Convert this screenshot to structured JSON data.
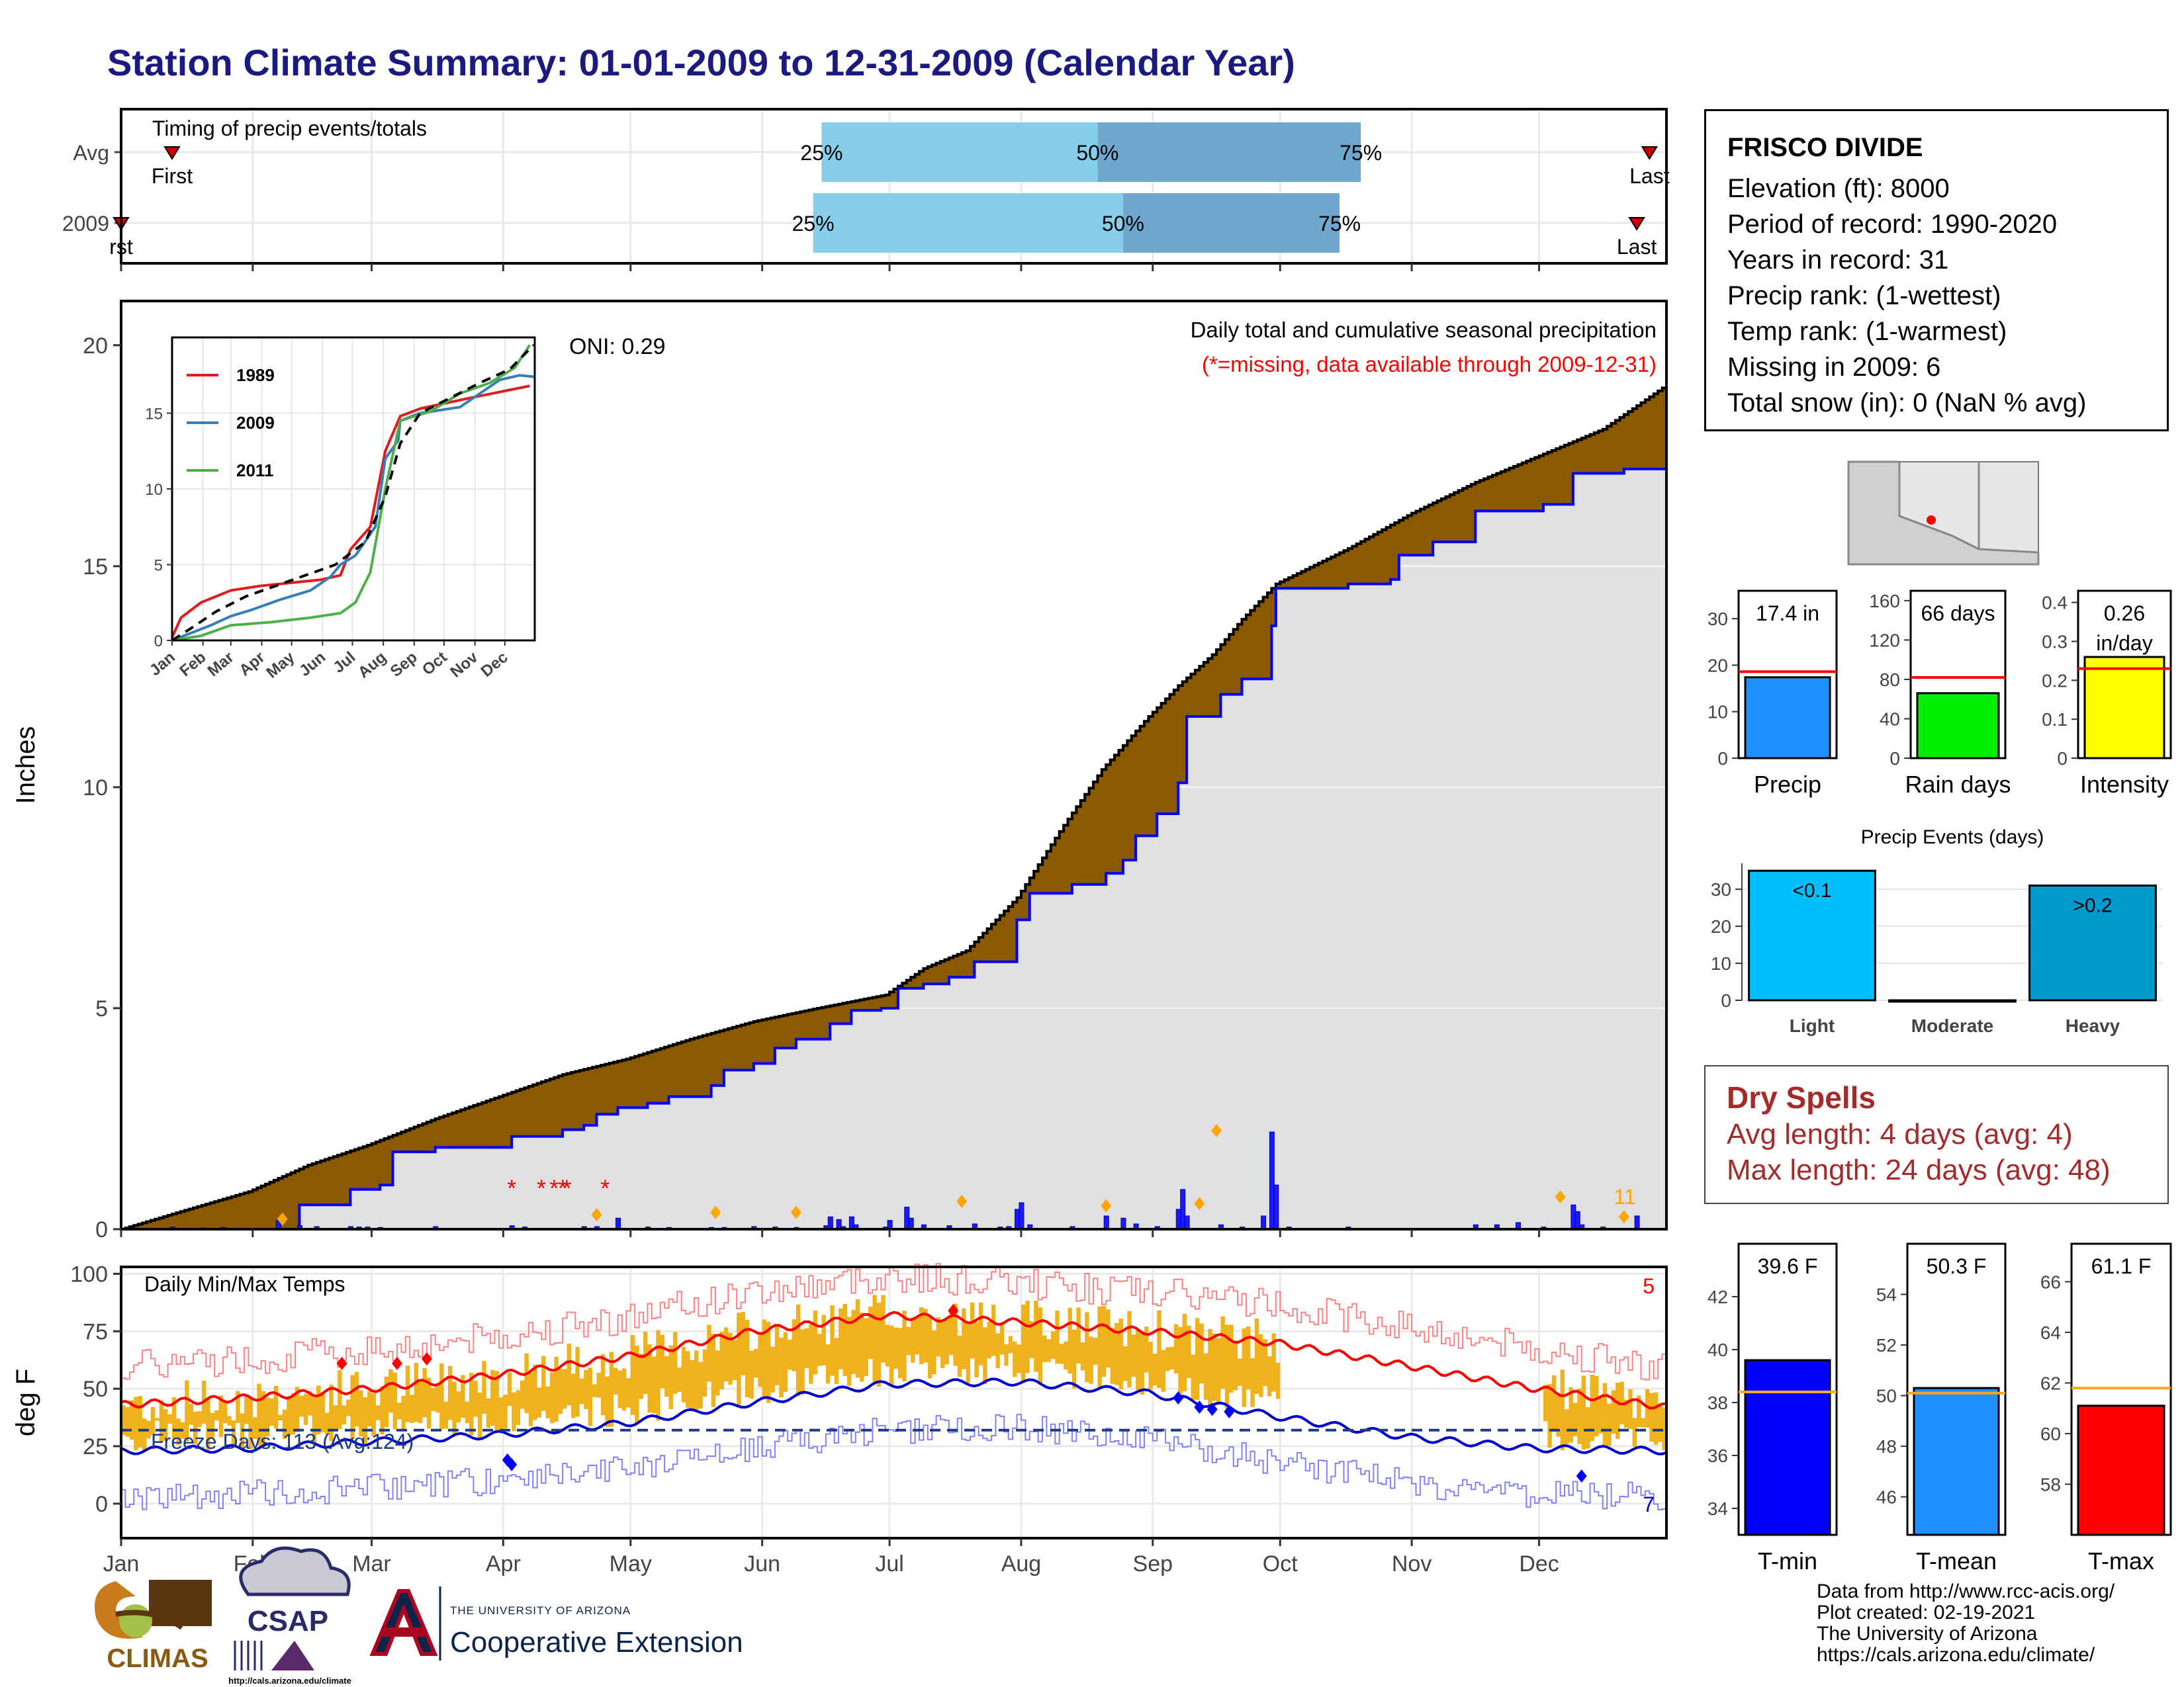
{
  "page": {
    "title": "Station Climate Summary: 01-01-2009 to 12-31-2009 (Calendar Year)"
  },
  "timing": {
    "title": "Timing of precip events/totals",
    "rows": [
      {
        "label": "Avg",
        "first_doy": 13,
        "p25_doy": 166,
        "p50_doy": 231,
        "p75_doy": 293,
        "last_doy": 361,
        "first_label": "First",
        "last_label": "Last",
        "p25_label": "25%",
        "p50_label": "50%",
        "p75_label": "75%"
      },
      {
        "label": "2009",
        "first_doy": 1,
        "p25_doy": 164,
        "p50_doy": 237,
        "p75_doy": 288,
        "last_doy": 358,
        "first_label": "rst",
        "last_label": "Last",
        "p25_label": "25%",
        "p50_label": "50%",
        "p75_label": "75%"
      }
    ],
    "colors": {
      "light": "#87ceeb",
      "dark": "#6fa8cf",
      "marker": "#cc0000"
    }
  },
  "info": {
    "station": "FRISCO DIVIDE",
    "lines": [
      "Elevation (ft): 8000",
      "Period of record: 1990-2020",
      "Years in record: 31",
      "Precip rank:  (1-wettest)",
      "Temp rank:  (1-warmest)",
      "Missing in 2009: 6",
      "Total snow (in): 0 (NaN % avg)"
    ]
  },
  "precip_chart": {
    "ylabel": "Inches",
    "yticks": [
      0,
      5,
      10,
      15,
      20
    ],
    "ylim": [
      0,
      21
    ],
    "note1": "Daily total and cumulative seasonal precipitation",
    "note2": "(*=missing, data available through 2009-12-31)",
    "oni": "ONI: 0.29",
    "count_label": "11",
    "avg_cumulative": [
      [
        1,
        0.0
      ],
      [
        15,
        0.4
      ],
      [
        31,
        0.85
      ],
      [
        45,
        1.45
      ],
      [
        59,
        1.9
      ],
      [
        75,
        2.5
      ],
      [
        90,
        3.0
      ],
      [
        105,
        3.5
      ],
      [
        120,
        3.85
      ],
      [
        135,
        4.3
      ],
      [
        150,
        4.7
      ],
      [
        165,
        5.0
      ],
      [
        181,
        5.3
      ],
      [
        190,
        5.9
      ],
      [
        200,
        6.3
      ],
      [
        212,
        7.5
      ],
      [
        222,
        9.0
      ],
      [
        232,
        10.4
      ],
      [
        243,
        11.6
      ],
      [
        250,
        12.3
      ],
      [
        258,
        13.0
      ],
      [
        265,
        13.8
      ],
      [
        273,
        14.6
      ],
      [
        290,
        15.4
      ],
      [
        305,
        16.2
      ],
      [
        320,
        16.9
      ],
      [
        335,
        17.5
      ],
      [
        350,
        18.1
      ],
      [
        365,
        19.1
      ]
    ],
    "obs_cumulative": [
      [
        1,
        0.0
      ],
      [
        38,
        0.0
      ],
      [
        43,
        0.55
      ],
      [
        55,
        0.9
      ],
      [
        62,
        1.0
      ],
      [
        65,
        1.75
      ],
      [
        75,
        1.85
      ],
      [
        80,
        1.85
      ],
      [
        93,
        2.1
      ],
      [
        105,
        2.25
      ],
      [
        110,
        2.35
      ],
      [
        113,
        2.6
      ],
      [
        118,
        2.75
      ],
      [
        125,
        2.85
      ],
      [
        130,
        3.0
      ],
      [
        140,
        3.25
      ],
      [
        143,
        3.6
      ],
      [
        150,
        3.75
      ],
      [
        155,
        4.1
      ],
      [
        160,
        4.3
      ],
      [
        168,
        4.65
      ],
      [
        173,
        4.95
      ],
      [
        180,
        5.0
      ],
      [
        184,
        5.45
      ],
      [
        190,
        5.55
      ],
      [
        196,
        5.7
      ],
      [
        202,
        6.05
      ],
      [
        212,
        7.0
      ],
      [
        215,
        7.6
      ],
      [
        225,
        7.8
      ],
      [
        233,
        8.05
      ],
      [
        237,
        8.35
      ],
      [
        240,
        8.9
      ],
      [
        245,
        9.4
      ],
      [
        250,
        10.1
      ],
      [
        252,
        11.6
      ],
      [
        260,
        12.1
      ],
      [
        265,
        12.45
      ],
      [
        272,
        13.65
      ],
      [
        273,
        14.5
      ],
      [
        290,
        14.6
      ],
      [
        300,
        14.7
      ],
      [
        302,
        15.25
      ],
      [
        310,
        15.55
      ],
      [
        320,
        16.25
      ],
      [
        336,
        16.4
      ],
      [
        343,
        17.1
      ],
      [
        355,
        17.2
      ],
      [
        365,
        17.4
      ]
    ],
    "daily_bars": [
      [
        13,
        0.05
      ],
      [
        20,
        0.03
      ],
      [
        25,
        0.04
      ],
      [
        38,
        0.2
      ],
      [
        43,
        0.08
      ],
      [
        47,
        0.06
      ],
      [
        55,
        0.06
      ],
      [
        57,
        0.05
      ],
      [
        59,
        0.05
      ],
      [
        62,
        0.04
      ],
      [
        75,
        0.06
      ],
      [
        93,
        0.08
      ],
      [
        96,
        0.05
      ],
      [
        110,
        0.06
      ],
      [
        113,
        0.06
      ],
      [
        118,
        0.25
      ],
      [
        125,
        0.05
      ],
      [
        130,
        0.04
      ],
      [
        140,
        0.04
      ],
      [
        143,
        0.04
      ],
      [
        150,
        0.06
      ],
      [
        155,
        0.05
      ],
      [
        160,
        0.04
      ],
      [
        167,
        0.08
      ],
      [
        168,
        0.28
      ],
      [
        170,
        0.22
      ],
      [
        171,
        0.06
      ],
      [
        181,
        0.05
      ],
      [
        182,
        0.2
      ],
      [
        173,
        0.28
      ],
      [
        174,
        0.1
      ],
      [
        186,
        0.5
      ],
      [
        187,
        0.25
      ],
      [
        190,
        0.1
      ],
      [
        196,
        0.08
      ],
      [
        202,
        0.12
      ],
      [
        208,
        0.05
      ],
      [
        210,
        0.06
      ],
      [
        212,
        0.45
      ],
      [
        213,
        0.6
      ],
      [
        215,
        0.1
      ],
      [
        225,
        0.06
      ],
      [
        233,
        0.3
      ],
      [
        237,
        0.25
      ],
      [
        240,
        0.12
      ],
      [
        245,
        0.06
      ],
      [
        250,
        0.45
      ],
      [
        251,
        0.9
      ],
      [
        252,
        0.3
      ],
      [
        260,
        0.1
      ],
      [
        265,
        0.05
      ],
      [
        270,
        0.3
      ],
      [
        272,
        2.2
      ],
      [
        273,
        1.0
      ],
      [
        276,
        0.05
      ],
      [
        290,
        0.05
      ],
      [
        320,
        0.1
      ],
      [
        325,
        0.1
      ],
      [
        330,
        0.15
      ],
      [
        336,
        0.05
      ],
      [
        343,
        0.55
      ],
      [
        344,
        0.4
      ],
      [
        345,
        0.1
      ],
      [
        350,
        0.05
      ],
      [
        358,
        0.3
      ]
    ],
    "missing_doys": [
      93,
      100,
      103,
      105,
      106,
      115
    ],
    "diamond_doys": [
      [
        39,
        0.2
      ],
      [
        113,
        0.3
      ],
      [
        141,
        0.35
      ],
      [
        160,
        0.35
      ],
      [
        199,
        0.6
      ],
      [
        233,
        0.5
      ],
      [
        255,
        0.55
      ],
      [
        259,
        2.2
      ],
      [
        340,
        0.7
      ],
      [
        355,
        0.25
      ]
    ],
    "colors": {
      "fill_above": "#8b5a00",
      "fill_below": "#e0e0e0",
      "green": "#008800",
      "obs_line": "#0000ff",
      "missing": "#ff0000",
      "diamond": "#ffa500"
    }
  },
  "inset": {
    "series": [
      {
        "name": "1989",
        "color": "#e41a1c",
        "values": [
          [
            1,
            0.2
          ],
          [
            10,
            1.5
          ],
          [
            30,
            2.5
          ],
          [
            60,
            3.3
          ],
          [
            90,
            3.6
          ],
          [
            120,
            3.8
          ],
          [
            150,
            4.0
          ],
          [
            170,
            4.3
          ],
          [
            180,
            6.0
          ],
          [
            200,
            7.5
          ],
          [
            215,
            12.5
          ],
          [
            230,
            14.8
          ],
          [
            250,
            15.3
          ],
          [
            300,
            16.0
          ],
          [
            330,
            16.4
          ],
          [
            360,
            16.8
          ]
        ]
      },
      {
        "name": "2009",
        "color": "#377eb8",
        "values": [
          [
            1,
            0.0
          ],
          [
            40,
            1.0
          ],
          [
            60,
            1.6
          ],
          [
            80,
            2.0
          ],
          [
            110,
            2.7
          ],
          [
            140,
            3.3
          ],
          [
            160,
            4.2
          ],
          [
            170,
            5.0
          ],
          [
            185,
            5.6
          ],
          [
            205,
            7.5
          ],
          [
            215,
            12.0
          ],
          [
            228,
            13.2
          ],
          [
            230,
            14.5
          ],
          [
            250,
            15.0
          ],
          [
            290,
            15.4
          ],
          [
            330,
            17.2
          ],
          [
            350,
            17.5
          ],
          [
            364,
            17.4
          ]
        ]
      },
      {
        "name": "2011",
        "color": "#4daf4a",
        "values": [
          [
            1,
            0.0
          ],
          [
            30,
            0.3
          ],
          [
            60,
            1.0
          ],
          [
            100,
            1.2
          ],
          [
            140,
            1.5
          ],
          [
            170,
            1.8
          ],
          [
            185,
            2.5
          ],
          [
            200,
            4.5
          ],
          [
            215,
            10.0
          ],
          [
            230,
            14.5
          ],
          [
            260,
            15.1
          ],
          [
            290,
            16.3
          ],
          [
            320,
            17.0
          ],
          [
            345,
            18.0
          ],
          [
            360,
            19.5
          ]
        ]
      }
    ],
    "avg": [
      [
        1,
        0.0
      ],
      [
        20,
        0.8
      ],
      [
        45,
        1.9
      ],
      [
        75,
        2.9
      ],
      [
        105,
        3.6
      ],
      [
        135,
        4.3
      ],
      [
        165,
        5.0
      ],
      [
        195,
        6.5
      ],
      [
        215,
        9.5
      ],
      [
        230,
        13.0
      ],
      [
        250,
        15.0
      ],
      [
        280,
        16.0
      ],
      [
        310,
        17.0
      ],
      [
        340,
        17.9
      ],
      [
        364,
        19.5
      ]
    ],
    "yticks": [
      0,
      5,
      10,
      15
    ],
    "ylim": [
      0,
      20
    ],
    "months": [
      "Jan",
      "Feb",
      "Mar",
      "Apr",
      "May",
      "Jun",
      "Jul",
      "Aug",
      "Sep",
      "Oct",
      "Nov",
      "Dec"
    ]
  },
  "months": [
    "Jan",
    "Feb",
    "Mar",
    "Apr",
    "May",
    "Jun",
    "Jul",
    "Aug",
    "Sep",
    "Oct",
    "Nov",
    "Dec"
  ],
  "temp_chart": {
    "title": "Daily Min/Max Temps",
    "ylabel": "deg F",
    "yticks": [
      0,
      25,
      50,
      75,
      100
    ],
    "ylim": [
      -15,
      103
    ],
    "freeze_label": "Freeze Days: 113 (Avg:124)",
    "freeze_threshold": 32,
    "top_count": "5",
    "bottom_count": "7",
    "avg_max": [
      [
        1,
        43
      ],
      [
        30,
        46
      ],
      [
        60,
        50
      ],
      [
        90,
        56
      ],
      [
        120,
        64
      ],
      [
        150,
        75
      ],
      [
        181,
        82
      ],
      [
        212,
        79
      ],
      [
        243,
        75
      ],
      [
        273,
        70
      ],
      [
        304,
        60
      ],
      [
        334,
        50
      ],
      [
        365,
        42
      ]
    ],
    "avg_min": [
      [
        1,
        23
      ],
      [
        30,
        24
      ],
      [
        60,
        27
      ],
      [
        90,
        30
      ],
      [
        120,
        35
      ],
      [
        150,
        44
      ],
      [
        181,
        52
      ],
      [
        212,
        53
      ],
      [
        243,
        48
      ],
      [
        273,
        38
      ],
      [
        304,
        29
      ],
      [
        334,
        24
      ],
      [
        365,
        23
      ]
    ],
    "colors": {
      "bar": "#efb21c",
      "max_line": "#ff0000",
      "min_line": "#0000cc",
      "rec_max": "#ff8080",
      "rec_min": "#8080ff",
      "freeze": "#1a3a8a"
    }
  },
  "bar_panels": [
    {
      "label": "Precip",
      "value_text": "17.4 in",
      "value": 17.4,
      "avg": 18.6,
      "yticks": [
        0,
        10,
        20,
        30
      ],
      "ylim": [
        0,
        36
      ],
      "color": "#1e90ff"
    },
    {
      "label": "Rain days",
      "value_text": "66 days",
      "value": 66,
      "avg": 82,
      "yticks": [
        0,
        40,
        80,
        120,
        160
      ],
      "ylim": [
        0,
        170
      ],
      "color": "#00ee00"
    },
    {
      "label": "Intensity",
      "value_text": "0.26",
      "value_text2": "in/day",
      "value": 0.26,
      "avg": 0.23,
      "yticks": [
        0.0,
        0.1,
        0.2,
        0.3,
        0.4
      ],
      "ylim": [
        0,
        0.43
      ],
      "color": "#ffff00"
    }
  ],
  "events": {
    "title": "Precip Events (days)",
    "categories": [
      "Light",
      "Moderate",
      "Heavy"
    ],
    "values": [
      35,
      0,
      31
    ],
    "bar_labels": [
      "<0.1",
      "",
      ">0.2"
    ],
    "yticks": [
      0,
      10,
      20,
      30
    ],
    "ylim": [
      0,
      37
    ],
    "colors": [
      "#00bfff",
      "#00bfff",
      "#009acd"
    ]
  },
  "dry_spells": {
    "title": "Dry Spells",
    "avg_line": "Avg length: 4 days (avg: 4)",
    "max_line": "Max length: 24 days (avg: 48)"
  },
  "temp_panels": [
    {
      "label": "T-min",
      "value_text": "39.6 F",
      "value": 39.6,
      "avg": 38.4,
      "yticks": [
        34,
        36,
        38,
        40,
        42
      ],
      "ylim": [
        33,
        44
      ],
      "color": "#0000ff"
    },
    {
      "label": "T-mean",
      "value_text": "50.3 F",
      "value": 50.3,
      "avg": 50.1,
      "yticks": [
        46,
        48,
        50,
        52,
        54
      ],
      "ylim": [
        44.5,
        56
      ],
      "color": "#1e90ff"
    },
    {
      "label": "T-max",
      "value_text": "61.1 F",
      "value": 61.1,
      "avg": 61.8,
      "yticks": [
        58,
        60,
        62,
        64,
        66
      ],
      "ylim": [
        56,
        67.5
      ],
      "color": "#ff0000"
    }
  ],
  "credits": {
    "l1": "Data from http://www.rcc-acis.org/",
    "l2": "Plot created: 02-19-2021",
    "l3": "The University of Arizona",
    "l4": "https://cals.arizona.edu/climate/"
  },
  "logos": {
    "climas": "CLIMAS",
    "csap": "CSAP",
    "csap_url": "http://cals.arizona.edu/climate",
    "ua_small": "THE UNIVERSITY OF ARIZONA",
    "ua_big": "Cooperative Extension"
  }
}
